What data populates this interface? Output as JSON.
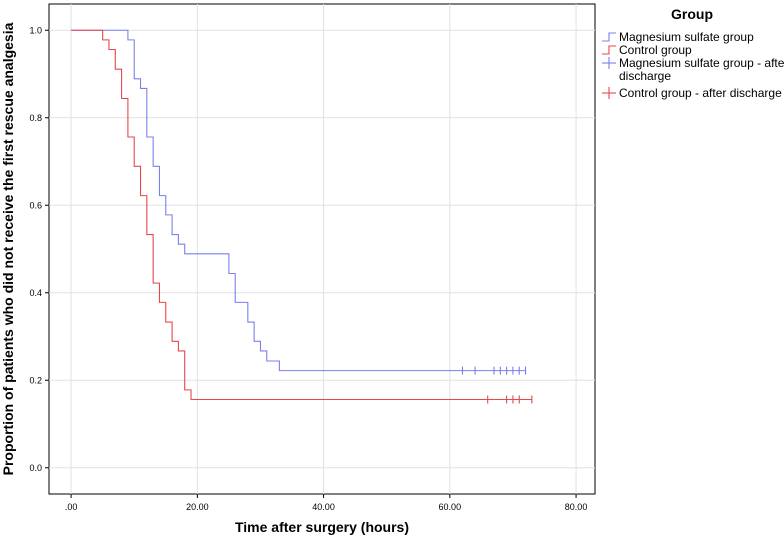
{
  "chart_data": {
    "type": "line",
    "chart_style": "kaplan-meier step",
    "xlabel": "Time after surgery (hours)",
    "ylabel": "Proportion of patients who did not receive the first rescue analgesia",
    "xlim": [
      -3.5,
      83
    ],
    "ylim": [
      -0.06,
      1.06
    ],
    "x_ticks": [
      0,
      20,
      40,
      60,
      80
    ],
    "x_tick_labels": [
      ".00",
      "20.00",
      "40.00",
      "60.00",
      "80.00"
    ],
    "y_ticks": [
      0,
      0.2,
      0.4,
      0.6,
      0.8,
      1.0
    ],
    "y_tick_labels": [
      "0.0",
      "0.2",
      "0.4",
      "0.6",
      "0.8",
      "1.0"
    ],
    "grid": true,
    "legend_title": "Group",
    "legend_position": "top-right outside",
    "legend": [
      {
        "label": "Magnesium sulfate group",
        "kind": "step",
        "color": "#7b7ff0"
      },
      {
        "label": "Control group",
        "kind": "step",
        "color": "#e8464a"
      },
      {
        "label_lines": [
          "Magnesium sulfate group - after",
          "discharge"
        ],
        "kind": "censor",
        "color": "#7b7ff0"
      },
      {
        "label_lines": [
          "Control group - after discharge"
        ],
        "kind": "censor",
        "color": "#e8464a"
      }
    ],
    "series": [
      {
        "name": "Magnesium sulfate group",
        "color": "#7b7ff0",
        "steps": [
          [
            0,
            1.0
          ],
          [
            9,
            0.978
          ],
          [
            10,
            0.889
          ],
          [
            11,
            0.867
          ],
          [
            12,
            0.756
          ],
          [
            13,
            0.689
          ],
          [
            14,
            0.622
          ],
          [
            15,
            0.578
          ],
          [
            16,
            0.533
          ],
          [
            17,
            0.511
          ],
          [
            18,
            0.489
          ],
          [
            25,
            0.444
          ],
          [
            26,
            0.378
          ],
          [
            28,
            0.333
          ],
          [
            29,
            0.289
          ],
          [
            30,
            0.267
          ],
          [
            31,
            0.244
          ],
          [
            33,
            0.222
          ]
        ],
        "end_x": 72,
        "censored_x": [
          62,
          64,
          67,
          68,
          69,
          70,
          71,
          72
        ]
      },
      {
        "name": "Control group",
        "color": "#e8464a",
        "steps": [
          [
            0,
            1.0
          ],
          [
            5,
            0.978
          ],
          [
            6,
            0.956
          ],
          [
            7,
            0.911
          ],
          [
            8,
            0.844
          ],
          [
            9,
            0.756
          ],
          [
            10,
            0.689
          ],
          [
            11,
            0.622
          ],
          [
            12,
            0.533
          ],
          [
            13,
            0.422
          ],
          [
            14,
            0.378
          ],
          [
            15,
            0.333
          ],
          [
            16,
            0.289
          ],
          [
            17,
            0.267
          ],
          [
            18,
            0.178
          ],
          [
            19,
            0.156
          ]
        ],
        "end_x": 73,
        "censored_x": [
          66,
          69,
          70,
          71,
          73
        ]
      }
    ]
  }
}
